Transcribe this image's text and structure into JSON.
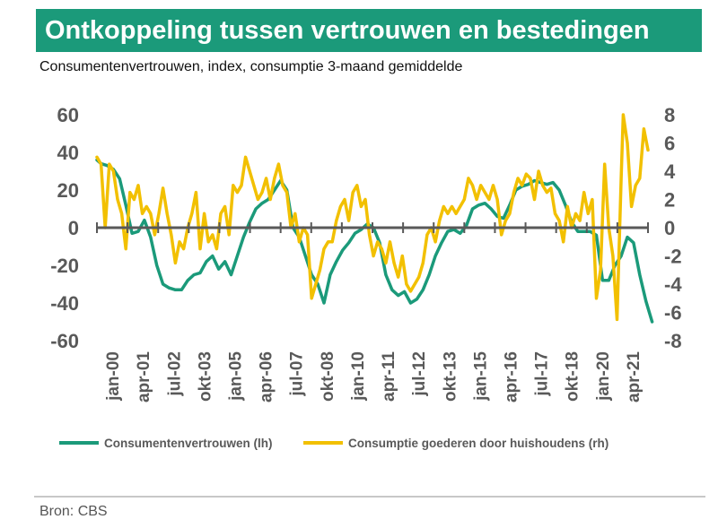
{
  "header": {
    "title": "Ontkoppeling tussen vertrouwen en bestedingen",
    "subtitle": "Consumentenvertrouwen, index, consumptie 3-maand gemiddelde"
  },
  "footer": {
    "source": "Bron: CBS"
  },
  "colors": {
    "title_bg": "#1b9a7a",
    "series_lh": "#1b9a7a",
    "series_rh": "#f2c000",
    "axis_text": "#595959"
  },
  "chart_data": {
    "type": "line",
    "x_tick_labels": [
      "jan-00",
      "apr-01",
      "jul-02",
      "okt-03",
      "jan-05",
      "apr-06",
      "jul-07",
      "okt-08",
      "jan-10",
      "apr-11",
      "jul-12",
      "okt-13",
      "jan-15",
      "apr-16",
      "jul-17",
      "okt-18",
      "jan-20",
      "apr-21"
    ],
    "ylim_left": [
      -60,
      60
    ],
    "yticks_left": [
      60,
      40,
      20,
      0,
      -20,
      -40,
      -60
    ],
    "ylim_right": [
      -8,
      8
    ],
    "yticks_right": [
      8,
      6,
      4,
      2,
      0,
      -2,
      -4,
      -6,
      -8
    ],
    "legend_position": "bottom",
    "series": [
      {
        "name": "Consumentenvertrouwen (lh)",
        "axis": "left",
        "color": "#1b9a7a",
        "points": [
          [
            "2000-01",
            36
          ],
          [
            "2000-03",
            34
          ],
          [
            "2000-06",
            33
          ],
          [
            "2000-09",
            31
          ],
          [
            "2000-12",
            26
          ],
          [
            "2001-03",
            12
          ],
          [
            "2001-06",
            -3
          ],
          [
            "2001-09",
            -2
          ],
          [
            "2001-12",
            4
          ],
          [
            "2002-03",
            -5
          ],
          [
            "2002-06",
            -20
          ],
          [
            "2002-09",
            -30
          ],
          [
            "2002-12",
            -32
          ],
          [
            "2003-03",
            -33
          ],
          [
            "2003-06",
            -33
          ],
          [
            "2003-09",
            -28
          ],
          [
            "2003-12",
            -25
          ],
          [
            "2004-03",
            -24
          ],
          [
            "2004-06",
            -18
          ],
          [
            "2004-09",
            -15
          ],
          [
            "2004-12",
            -22
          ],
          [
            "2005-03",
            -18
          ],
          [
            "2005-06",
            -25
          ],
          [
            "2005-09",
            -15
          ],
          [
            "2005-12",
            -5
          ],
          [
            "2006-03",
            3
          ],
          [
            "2006-06",
            10
          ],
          [
            "2006-09",
            13
          ],
          [
            "2006-12",
            15
          ],
          [
            "2007-03",
            20
          ],
          [
            "2007-06",
            25
          ],
          [
            "2007-09",
            20
          ],
          [
            "2007-12",
            0
          ],
          [
            "2008-03",
            -5
          ],
          [
            "2008-06",
            -15
          ],
          [
            "2008-09",
            -25
          ],
          [
            "2008-12",
            -30
          ],
          [
            "2009-03",
            -40
          ],
          [
            "2009-06",
            -25
          ],
          [
            "2009-09",
            -18
          ],
          [
            "2009-12",
            -12
          ],
          [
            "2010-03",
            -8
          ],
          [
            "2010-06",
            -3
          ],
          [
            "2010-09",
            -1
          ],
          [
            "2010-12",
            2
          ],
          [
            "2011-03",
            0
          ],
          [
            "2011-06",
            -8
          ],
          [
            "2011-09",
            -25
          ],
          [
            "2011-12",
            -33
          ],
          [
            "2012-03",
            -36
          ],
          [
            "2012-06",
            -34
          ],
          [
            "2012-09",
            -40
          ],
          [
            "2012-12",
            -38
          ],
          [
            "2013-03",
            -33
          ],
          [
            "2013-06",
            -25
          ],
          [
            "2013-09",
            -15
          ],
          [
            "2013-12",
            -8
          ],
          [
            "2014-03",
            -2
          ],
          [
            "2014-06",
            -1
          ],
          [
            "2014-09",
            -3
          ],
          [
            "2014-12",
            1
          ],
          [
            "2015-03",
            10
          ],
          [
            "2015-06",
            12
          ],
          [
            "2015-09",
            13
          ],
          [
            "2015-12",
            10
          ],
          [
            "2016-03",
            6
          ],
          [
            "2016-06",
            5
          ],
          [
            "2016-09",
            12
          ],
          [
            "2016-12",
            20
          ],
          [
            "2017-03",
            22
          ],
          [
            "2017-06",
            23
          ],
          [
            "2017-09",
            25
          ],
          [
            "2017-12",
            24
          ],
          [
            "2018-03",
            23
          ],
          [
            "2018-06",
            24
          ],
          [
            "2018-09",
            20
          ],
          [
            "2018-12",
            12
          ],
          [
            "2019-03",
            3
          ],
          [
            "2019-06",
            -2
          ],
          [
            "2019-09",
            -2
          ],
          [
            "2019-12",
            -2
          ],
          [
            "2020-03",
            -4
          ],
          [
            "2020-06",
            -28
          ],
          [
            "2020-09",
            -28
          ],
          [
            "2020-12",
            -20
          ],
          [
            "2021-03",
            -15
          ],
          [
            "2021-06",
            -5
          ],
          [
            "2021-09",
            -8
          ],
          [
            "2021-12",
            -25
          ],
          [
            "2022-03",
            -39
          ],
          [
            "2022-06",
            -50
          ]
        ]
      },
      {
        "name": "Consumptie goederen door huishoudens (rh)",
        "axis": "right",
        "color": "#f2c000",
        "points": [
          [
            "2000-01",
            5
          ],
          [
            "2000-03",
            4.5
          ],
          [
            "2000-05",
            0
          ],
          [
            "2000-07",
            4.5
          ],
          [
            "2000-09",
            4
          ],
          [
            "2000-11",
            2
          ],
          [
            "2001-01",
            1
          ],
          [
            "2001-03",
            -1.5
          ],
          [
            "2001-05",
            2.5
          ],
          [
            "2001-07",
            2
          ],
          [
            "2001-09",
            3
          ],
          [
            "2001-11",
            1
          ],
          [
            "2002-01",
            1.5
          ],
          [
            "2002-03",
            1
          ],
          [
            "2002-05",
            -0.5
          ],
          [
            "2002-07",
            1
          ],
          [
            "2002-09",
            2.8
          ],
          [
            "2002-11",
            1
          ],
          [
            "2003-01",
            -0.5
          ],
          [
            "2003-03",
            -2.5
          ],
          [
            "2003-05",
            -1
          ],
          [
            "2003-07",
            -1.5
          ],
          [
            "2003-09",
            0
          ],
          [
            "2003-11",
            1
          ],
          [
            "2004-01",
            2.5
          ],
          [
            "2004-03",
            -1.5
          ],
          [
            "2004-05",
            1
          ],
          [
            "2004-07",
            -1
          ],
          [
            "2004-09",
            -0.5
          ],
          [
            "2004-11",
            -1.5
          ],
          [
            "2005-01",
            1
          ],
          [
            "2005-03",
            1.5
          ],
          [
            "2005-05",
            -0.5
          ],
          [
            "2005-07",
            3
          ],
          [
            "2005-09",
            2.5
          ],
          [
            "2005-11",
            3
          ],
          [
            "2006-01",
            5
          ],
          [
            "2006-03",
            4
          ],
          [
            "2006-05",
            3
          ],
          [
            "2006-07",
            2
          ],
          [
            "2006-09",
            2.5
          ],
          [
            "2006-11",
            3.5
          ],
          [
            "2007-01",
            2
          ],
          [
            "2007-03",
            3.5
          ],
          [
            "2007-05",
            4.5
          ],
          [
            "2007-07",
            3
          ],
          [
            "2007-09",
            2.5
          ],
          [
            "2007-11",
            0
          ],
          [
            "2008-01",
            1
          ],
          [
            "2008-03",
            -1
          ],
          [
            "2008-05",
            0
          ],
          [
            "2008-07",
            -0.5
          ],
          [
            "2008-09",
            -5
          ],
          [
            "2008-11",
            -4
          ],
          [
            "2009-01",
            -3
          ],
          [
            "2009-03",
            -1.5
          ],
          [
            "2009-05",
            -1
          ],
          [
            "2009-07",
            -1
          ],
          [
            "2009-09",
            0.5
          ],
          [
            "2009-11",
            1.5
          ],
          [
            "2010-01",
            2
          ],
          [
            "2010-03",
            0.5
          ],
          [
            "2010-05",
            2.5
          ],
          [
            "2010-07",
            3
          ],
          [
            "2010-09",
            1.5
          ],
          [
            "2010-11",
            2
          ],
          [
            "2011-01",
            -0.5
          ],
          [
            "2011-03",
            -2
          ],
          [
            "2011-05",
            -1
          ],
          [
            "2011-07",
            -1.5
          ],
          [
            "2011-09",
            -2.5
          ],
          [
            "2011-11",
            -1
          ],
          [
            "2012-01",
            -2.5
          ],
          [
            "2012-03",
            -3.5
          ],
          [
            "2012-05",
            -2
          ],
          [
            "2012-07",
            -4
          ],
          [
            "2012-09",
            -4.5
          ],
          [
            "2012-11",
            -4
          ],
          [
            "2013-01",
            -3.5
          ],
          [
            "2013-03",
            -2.5
          ],
          [
            "2013-05",
            -0.5
          ],
          [
            "2013-07",
            0
          ],
          [
            "2013-09",
            -1
          ],
          [
            "2013-11",
            0.5
          ],
          [
            "2014-01",
            1.5
          ],
          [
            "2014-03",
            1
          ],
          [
            "2014-05",
            1.5
          ],
          [
            "2014-07",
            1
          ],
          [
            "2014-09",
            1.5
          ],
          [
            "2014-11",
            2
          ],
          [
            "2015-01",
            3.5
          ],
          [
            "2015-03",
            3
          ],
          [
            "2015-05",
            2
          ],
          [
            "2015-07",
            3
          ],
          [
            "2015-09",
            2.5
          ],
          [
            "2015-11",
            2
          ],
          [
            "2016-01",
            3
          ],
          [
            "2016-03",
            2
          ],
          [
            "2016-05",
            -0.5
          ],
          [
            "2016-07",
            0.5
          ],
          [
            "2016-09",
            1
          ],
          [
            "2016-11",
            2.5
          ],
          [
            "2017-01",
            3.5
          ],
          [
            "2017-03",
            3
          ],
          [
            "2017-05",
            3.8
          ],
          [
            "2017-07",
            3.5
          ],
          [
            "2017-09",
            2
          ],
          [
            "2017-11",
            4
          ],
          [
            "2018-01",
            3
          ],
          [
            "2018-03",
            2.5
          ],
          [
            "2018-05",
            2.8
          ],
          [
            "2018-07",
            1
          ],
          [
            "2018-09",
            0.5
          ],
          [
            "2018-11",
            -1
          ],
          [
            "2019-01",
            1.5
          ],
          [
            "2019-03",
            0
          ],
          [
            "2019-05",
            1
          ],
          [
            "2019-07",
            0.5
          ],
          [
            "2019-09",
            2.5
          ],
          [
            "2019-11",
            1
          ],
          [
            "2020-01",
            2
          ],
          [
            "2020-03",
            -5
          ],
          [
            "2020-05",
            -3
          ],
          [
            "2020-07",
            4.5
          ],
          [
            "2020-09",
            0
          ],
          [
            "2020-11",
            -2
          ],
          [
            "2021-01",
            -6.5
          ],
          [
            "2021-03",
            3.5
          ],
          [
            "2021-04",
            8
          ],
          [
            "2021-06",
            6
          ],
          [
            "2021-08",
            1.5
          ],
          [
            "2021-10",
            3
          ],
          [
            "2021-12",
            3.5
          ],
          [
            "2022-02",
            7
          ],
          [
            "2022-04",
            5.5
          ]
        ]
      }
    ]
  }
}
